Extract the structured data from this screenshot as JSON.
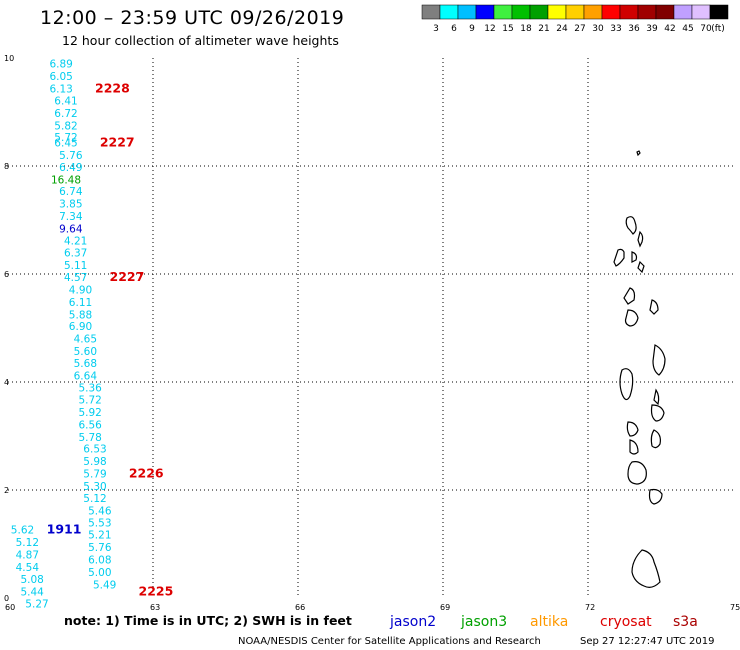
{
  "title": "12:00 – 23:59 UTC 09/26/2019",
  "subtitle": "12 hour collection of altimeter wave heights",
  "note": "note:  1) Time is in UTC; 2) SWH is in feet",
  "credit_left": "NOAA/NESDIS Center for Satellite Applications and Research",
  "credit_right": "Sep 27 12:27:47 UTC 2019",
  "colorbar": {
    "colors": [
      "#7f7f7f",
      "#00ffff",
      "#00bfff",
      "#0000ff",
      "#3ff03f",
      "#00c000",
      "#00a000",
      "#ffff00",
      "#ffd000",
      "#ffa000",
      "#ff0000",
      "#d00000",
      "#a00000",
      "#800000",
      "#c0a0ff",
      "#e0c0ff",
      "#000000"
    ],
    "labels": [
      "3",
      "6",
      "9",
      "12",
      "15",
      "18",
      "21",
      "24",
      "27",
      "30",
      "33",
      "36",
      "39",
      "42",
      "45",
      "70",
      "(ft)"
    ]
  },
  "satellites": [
    {
      "name": "jason2",
      "color": "#0000cc"
    },
    {
      "name": "jason3",
      "color": "#00a000"
    },
    {
      "name": "altika",
      "color": "#ff9900"
    },
    {
      "name": "cryosat",
      "color": "#dd0000"
    },
    {
      "name": "s3a",
      "color": "#aa0000"
    }
  ],
  "chart_data": {
    "type": "scatter",
    "xlim": [
      60,
      75
    ],
    "ylim": [
      0,
      10
    ],
    "x_ticks": [
      "60",
      "63",
      "66",
      "69",
      "72",
      "75"
    ],
    "y_ticks": [
      "0",
      "2",
      "4",
      "6",
      "8",
      "10"
    ],
    "grid": true,
    "points": [
      {
        "x": 61.1,
        "y": 9.82,
        "label": "6.89",
        "color": "#00ccee"
      },
      {
        "x": 61.1,
        "y": 9.59,
        "label": "6.05",
        "color": "#00ccee"
      },
      {
        "x": 61.1,
        "y": 9.36,
        "label": "6.13",
        "color": "#00ccee"
      },
      {
        "x": 61.2,
        "y": 9.14,
        "label": "6.41",
        "color": "#00ccee"
      },
      {
        "x": 61.2,
        "y": 8.91,
        "label": "6.72",
        "color": "#00ccee"
      },
      {
        "x": 61.2,
        "y": 8.68,
        "label": "5.82",
        "color": "#00ccee"
      },
      {
        "x": 61.2,
        "y": 8.46,
        "label": "5.72",
        "color": "#00ccee"
      },
      {
        "x": 61.2,
        "y": 8.36,
        "label": "6.45",
        "color": "#00ccee"
      },
      {
        "x": 61.3,
        "y": 8.13,
        "label": "5.76",
        "color": "#00ccee"
      },
      {
        "x": 61.3,
        "y": 7.91,
        "label": "6.49",
        "color": "#00ccee"
      },
      {
        "x": 61.2,
        "y": 7.68,
        "label": "16.48",
        "color": "#00a000"
      },
      {
        "x": 61.3,
        "y": 7.46,
        "label": "6.74",
        "color": "#00ccee"
      },
      {
        "x": 61.3,
        "y": 7.23,
        "label": "3.85",
        "color": "#00ccee"
      },
      {
        "x": 61.3,
        "y": 7.0,
        "label": "7.34",
        "color": "#00ccee"
      },
      {
        "x": 61.3,
        "y": 6.77,
        "label": "9.64",
        "color": "#0000cc"
      },
      {
        "x": 61.4,
        "y": 6.55,
        "label": "4.21",
        "color": "#00ccee"
      },
      {
        "x": 61.4,
        "y": 6.32,
        "label": "6.37",
        "color": "#00ccee"
      },
      {
        "x": 61.4,
        "y": 6.09,
        "label": "5.11",
        "color": "#00ccee"
      },
      {
        "x": 61.4,
        "y": 5.87,
        "label": "4.57",
        "color": "#00ccee"
      },
      {
        "x": 61.5,
        "y": 5.64,
        "label": "4.90",
        "color": "#00ccee"
      },
      {
        "x": 61.5,
        "y": 5.41,
        "label": "6.11",
        "color": "#00ccee"
      },
      {
        "x": 61.5,
        "y": 5.18,
        "label": "5.88",
        "color": "#00ccee"
      },
      {
        "x": 61.5,
        "y": 4.96,
        "label": "6.90",
        "color": "#00ccee"
      },
      {
        "x": 61.6,
        "y": 4.73,
        "label": "4.65",
        "color": "#00ccee"
      },
      {
        "x": 61.6,
        "y": 4.5,
        "label": "5.60",
        "color": "#00ccee"
      },
      {
        "x": 61.6,
        "y": 4.28,
        "label": "5.68",
        "color": "#00ccee"
      },
      {
        "x": 61.6,
        "y": 4.05,
        "label": "6.64",
        "color": "#00ccee"
      },
      {
        "x": 61.7,
        "y": 3.82,
        "label": "5.36",
        "color": "#00ccee"
      },
      {
        "x": 61.7,
        "y": 3.6,
        "label": "5.72",
        "color": "#00ccee"
      },
      {
        "x": 61.7,
        "y": 3.37,
        "label": "5.92",
        "color": "#00ccee"
      },
      {
        "x": 61.7,
        "y": 3.14,
        "label": "6.56",
        "color": "#00ccee"
      },
      {
        "x": 61.7,
        "y": 2.91,
        "label": "5.78",
        "color": "#00ccee"
      },
      {
        "x": 61.8,
        "y": 2.69,
        "label": "6.53",
        "color": "#00ccee"
      },
      {
        "x": 61.8,
        "y": 2.46,
        "label": "5.98",
        "color": "#00ccee"
      },
      {
        "x": 61.8,
        "y": 2.23,
        "label": "5.79",
        "color": "#00ccee"
      },
      {
        "x": 61.8,
        "y": 2.0,
        "label": "5.30",
        "color": "#00ccee"
      },
      {
        "x": 61.8,
        "y": 1.78,
        "label": "5.12",
        "color": "#00ccee"
      },
      {
        "x": 61.9,
        "y": 1.55,
        "label": "5.46",
        "color": "#00ccee"
      },
      {
        "x": 61.9,
        "y": 1.32,
        "label": "5.53",
        "color": "#00ccee"
      },
      {
        "x": 61.9,
        "y": 1.1,
        "label": "5.21",
        "color": "#00ccee"
      },
      {
        "x": 61.9,
        "y": 0.87,
        "label": "5.76",
        "color": "#00ccee"
      },
      {
        "x": 61.9,
        "y": 0.64,
        "label": "6.08",
        "color": "#00ccee"
      },
      {
        "x": 61.9,
        "y": 0.41,
        "label": "5.00",
        "color": "#00ccee"
      },
      {
        "x": 62.0,
        "y": 0.18,
        "label": "5.49",
        "color": "#00ccee"
      },
      {
        "x": 60.3,
        "y": 1.19,
        "label": "5.62",
        "color": "#00ccee"
      },
      {
        "x": 60.4,
        "y": 0.96,
        "label": "5.12",
        "color": "#00ccee"
      },
      {
        "x": 60.4,
        "y": 0.73,
        "label": "4.87",
        "color": "#00ccee"
      },
      {
        "x": 60.4,
        "y": 0.5,
        "label": "4.54",
        "color": "#00ccee"
      },
      {
        "x": 60.5,
        "y": 0.28,
        "label": "5.08",
        "color": "#00ccee"
      },
      {
        "x": 60.5,
        "y": 0.05,
        "label": "5.44",
        "color": "#00ccee"
      },
      {
        "x": 60.6,
        "y": -0.18,
        "label": "5.27",
        "color": "#00ccee"
      }
    ],
    "pass_labels": [
      {
        "x": 61.8,
        "y": 9.36,
        "text": "2228",
        "color": "#dd0000"
      },
      {
        "x": 61.9,
        "y": 8.36,
        "text": "2227",
        "color": "#dd0000"
      },
      {
        "x": 62.1,
        "y": 5.87,
        "text": "2227",
        "color": "#dd0000"
      },
      {
        "x": 62.5,
        "y": 2.23,
        "text": "2226",
        "color": "#dd0000"
      },
      {
        "x": 62.7,
        "y": 0.05,
        "text": "2225",
        "color": "#dd0000"
      },
      {
        "x": 60.8,
        "y": 1.19,
        "text": "1911",
        "color": "#0000cc"
      }
    ]
  }
}
